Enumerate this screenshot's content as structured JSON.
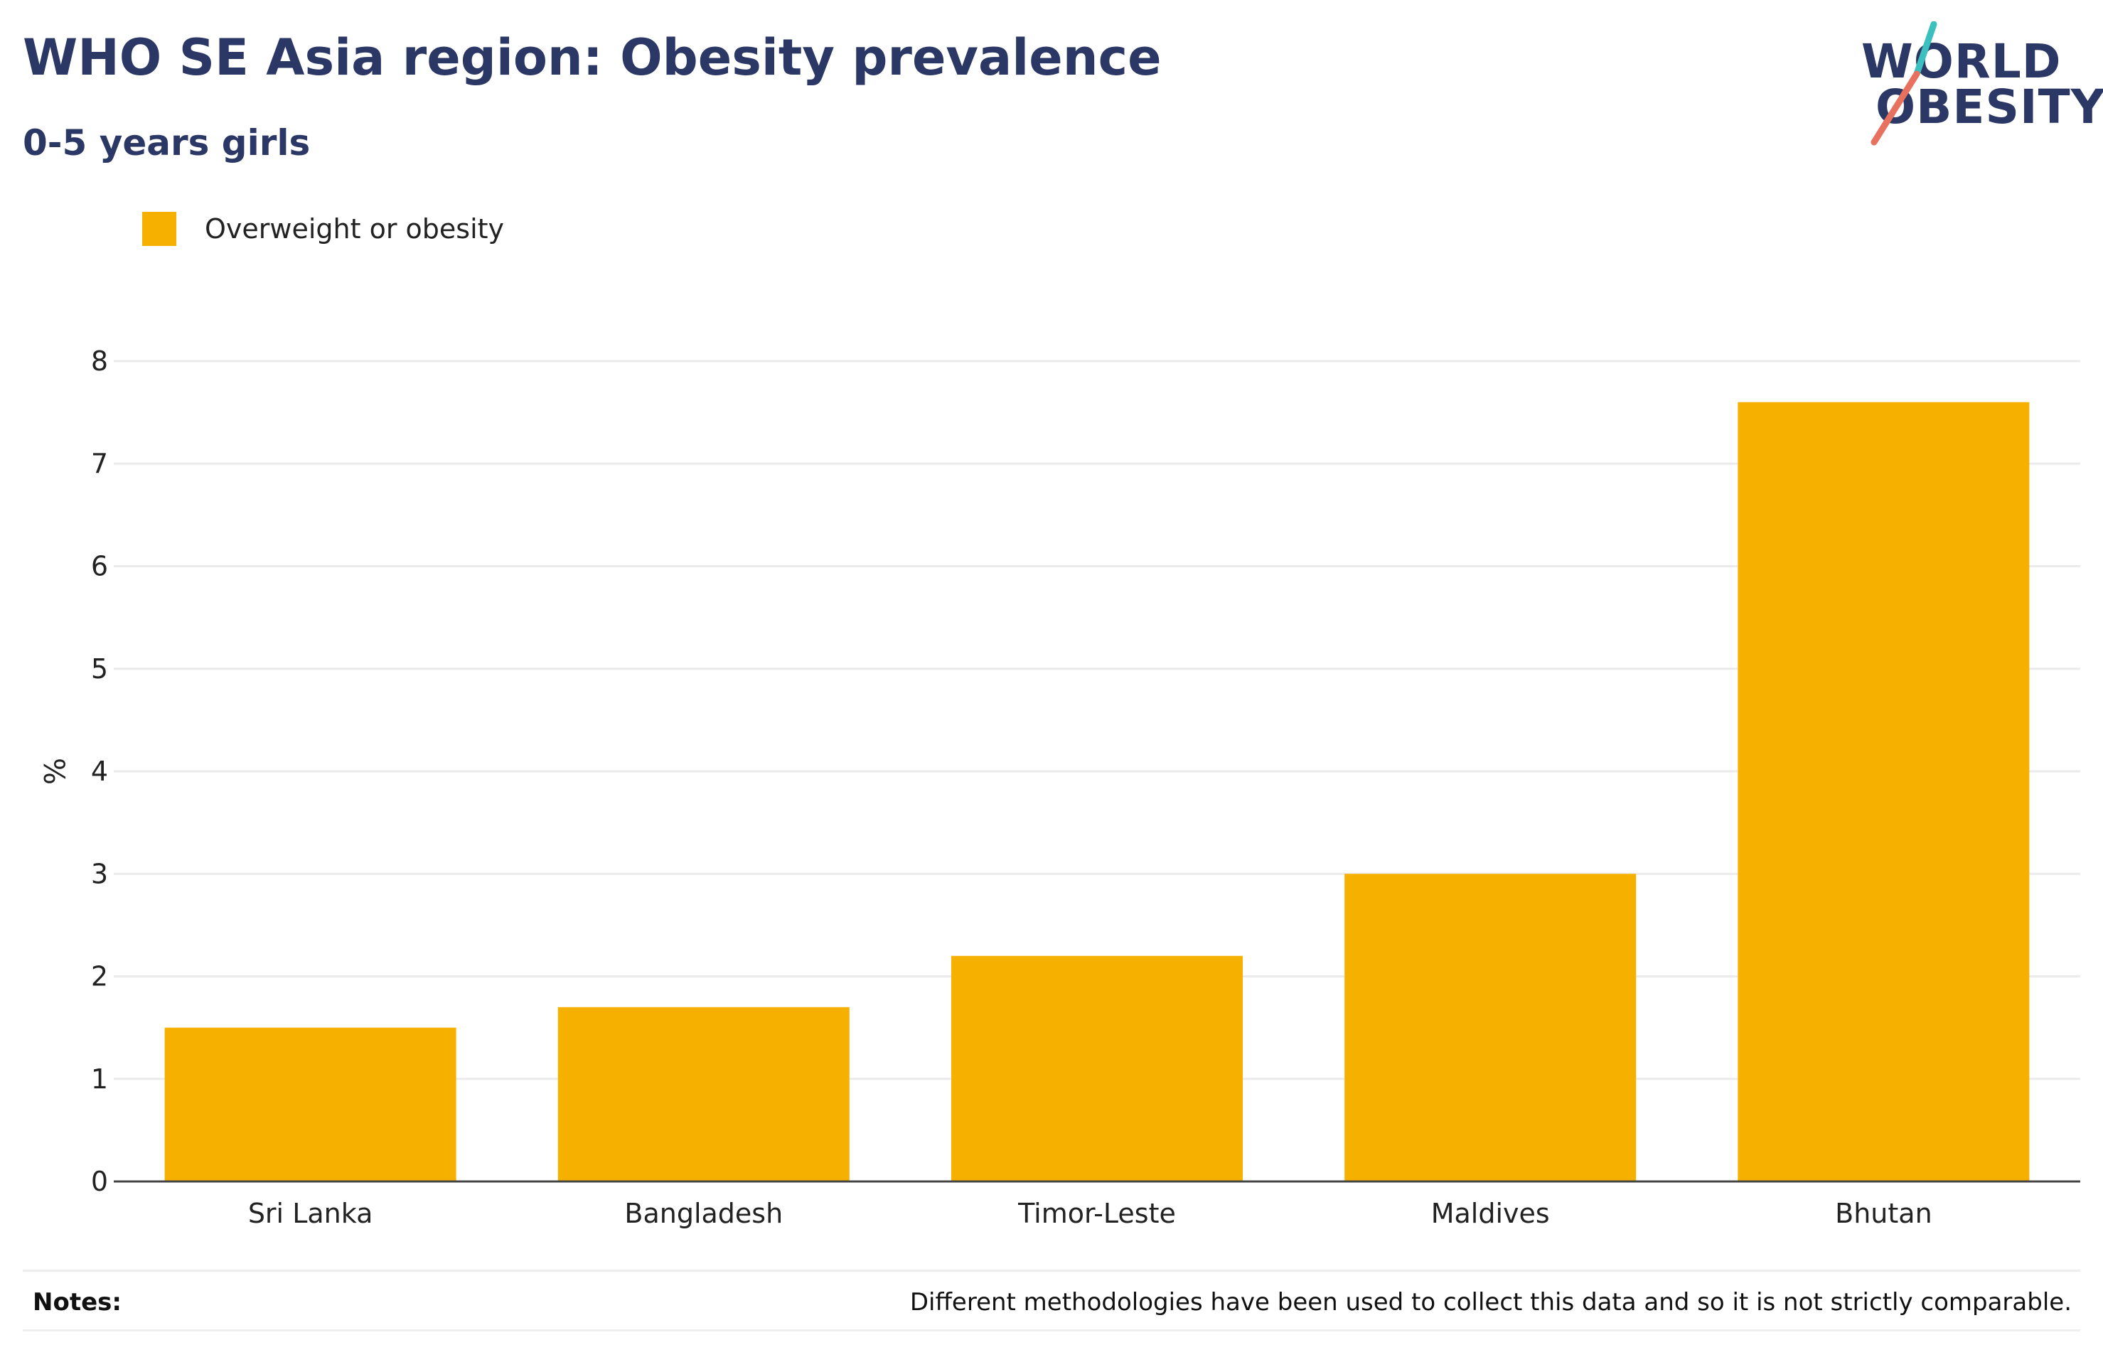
{
  "header": {
    "title": "WHO SE Asia region: Obesity prevalence",
    "subtitle": "0-5 years girls"
  },
  "logo": {
    "line1": "WORLD",
    "line2": "OBESITY",
    "text_color": "#2b3764",
    "slash_colors": [
      "#3bbfbf",
      "#e8705f"
    ]
  },
  "legend": {
    "label": "Overweight or obesity",
    "color": "#f6b000"
  },
  "notes": {
    "label": "Notes:",
    "text": "Different methodologies have been used to collect this data and so it is not strictly comparable."
  },
  "chart_data": {
    "type": "bar",
    "title": "WHO SE Asia region: Obesity prevalence",
    "subtitle": "0-5 years girls",
    "categories": [
      "Sri Lanka",
      "Bangladesh",
      "Timor-Leste",
      "Maldives",
      "Bhutan"
    ],
    "series": [
      {
        "name": "Overweight or obesity",
        "values": [
          1.5,
          1.7,
          2.2,
          3.0,
          7.6
        ],
        "color": "#f6b000"
      }
    ],
    "xlabel": "",
    "ylabel": "%",
    "ylim": [
      0,
      8
    ],
    "yticks": [
      "0",
      "1",
      "2",
      "3",
      "4",
      "5",
      "6",
      "7",
      "8"
    ],
    "grid": true,
    "legend_position": "top-left"
  }
}
